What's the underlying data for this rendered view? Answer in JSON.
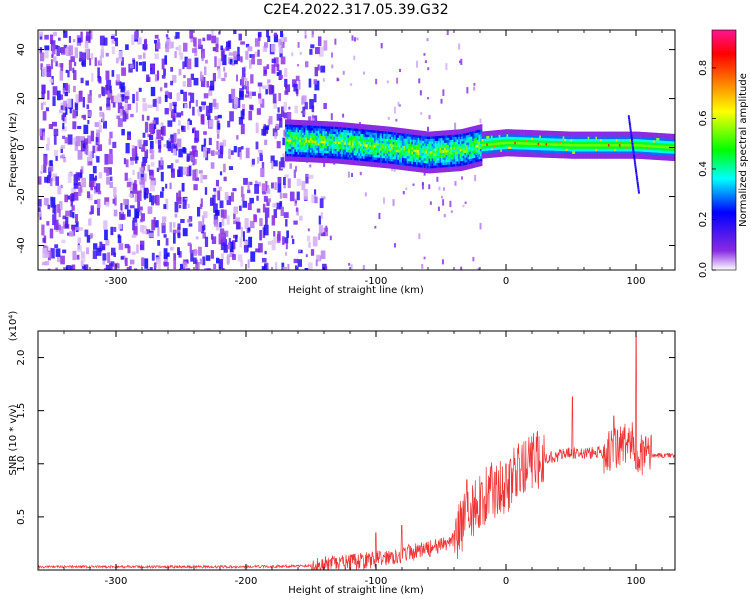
{
  "figure": {
    "title": "C2E4.2022.317.05.39.G32"
  },
  "colors": {
    "snr_line": "#ee3333",
    "ridge": "#0a2fd8",
    "noise": "#8a2be2",
    "axis": "#000000"
  },
  "chart_data": [
    {
      "type": "heatmap",
      "title": "C2E4.2022.317.05.39.G32",
      "xlabel": "Height of straight line (km)",
      "ylabel": "Frequency (Hz)",
      "xlim": [
        -360,
        130
      ],
      "ylim": [
        -50,
        48
      ],
      "x_ticks": [
        -300,
        -200,
        -100,
        0,
        100
      ],
      "y_ticks": [
        -40,
        -20,
        0,
        20,
        40
      ],
      "colorbar": {
        "label": "Normalized spectral amplitude",
        "range": [
          0.0,
          0.95
        ],
        "ticks": [
          0.0,
          0.2,
          0.4,
          0.6,
          0.8
        ],
        "colormap": [
          "#ffffff",
          "#8a2be2",
          "#0000ff",
          "#00ffff",
          "#00ff00",
          "#ffff00",
          "#ff8000",
          "#ff0000",
          "#ff1493"
        ]
      },
      "features": {
        "noise_region_x": [
          -360,
          -170
        ],
        "signal_ridge": [
          {
            "x": -170,
            "f": 3
          },
          {
            "x": -130,
            "f": 2
          },
          {
            "x": -90,
            "f": 0
          },
          {
            "x": -60,
            "f": -2
          },
          {
            "x": -35,
            "f": -1
          },
          {
            "x": -20,
            "f": 1
          },
          {
            "x": 0,
            "f": 2
          },
          {
            "x": 50,
            "f": 1
          },
          {
            "x": 100,
            "f": 1
          },
          {
            "x": 130,
            "f": 0
          }
        ],
        "ridge_halfwidth_hz": 3,
        "spike": {
          "x": 97,
          "f_range": [
            -18,
            14
          ]
        }
      }
    },
    {
      "type": "line",
      "xlabel": "Height of straight line (km)",
      "ylabel": "SNR (10 * v/v)",
      "y_scale_label": "(x10⁴)",
      "xlim": [
        -360,
        130
      ],
      "ylim": [
        0.0,
        2.25
      ],
      "x_ticks": [
        -300,
        -200,
        -100,
        0,
        100
      ],
      "y_ticks": [
        0.5,
        1.0,
        1.5,
        2.0
      ],
      "series": [
        {
          "x": [
            -360,
            -300,
            -200,
            -150,
            -120,
            -100,
            -80,
            -70,
            -60,
            -50,
            -40,
            -30,
            -20,
            -10,
            0,
            10,
            20,
            30,
            40,
            50,
            60,
            70,
            80,
            90,
            95,
            100,
            105,
            110,
            120,
            130
          ],
          "y": [
            0.03,
            0.03,
            0.03,
            0.04,
            0.07,
            0.1,
            0.15,
            0.17,
            0.2,
            0.22,
            0.3,
            0.5,
            0.65,
            0.75,
            0.8,
            0.92,
            1.02,
            1.05,
            1.08,
            1.1,
            1.1,
            1.1,
            1.12,
            1.18,
            1.2,
            1.15,
            1.1,
            1.08,
            1.08,
            1.08
          ],
          "peaks": [
            {
              "x": -100,
              "y": 0.35
            },
            {
              "x": -80,
              "y": 0.42
            },
            {
              "x": -30,
              "y": 0.85
            },
            {
              "x": 0,
              "y": 1.0
            },
            {
              "x": 10,
              "y": 1.05
            },
            {
              "x": 51,
              "y": 1.63
            },
            {
              "x": 83,
              "y": 1.45
            },
            {
              "x": 100,
              "y": 2.2
            }
          ]
        }
      ]
    }
  ]
}
